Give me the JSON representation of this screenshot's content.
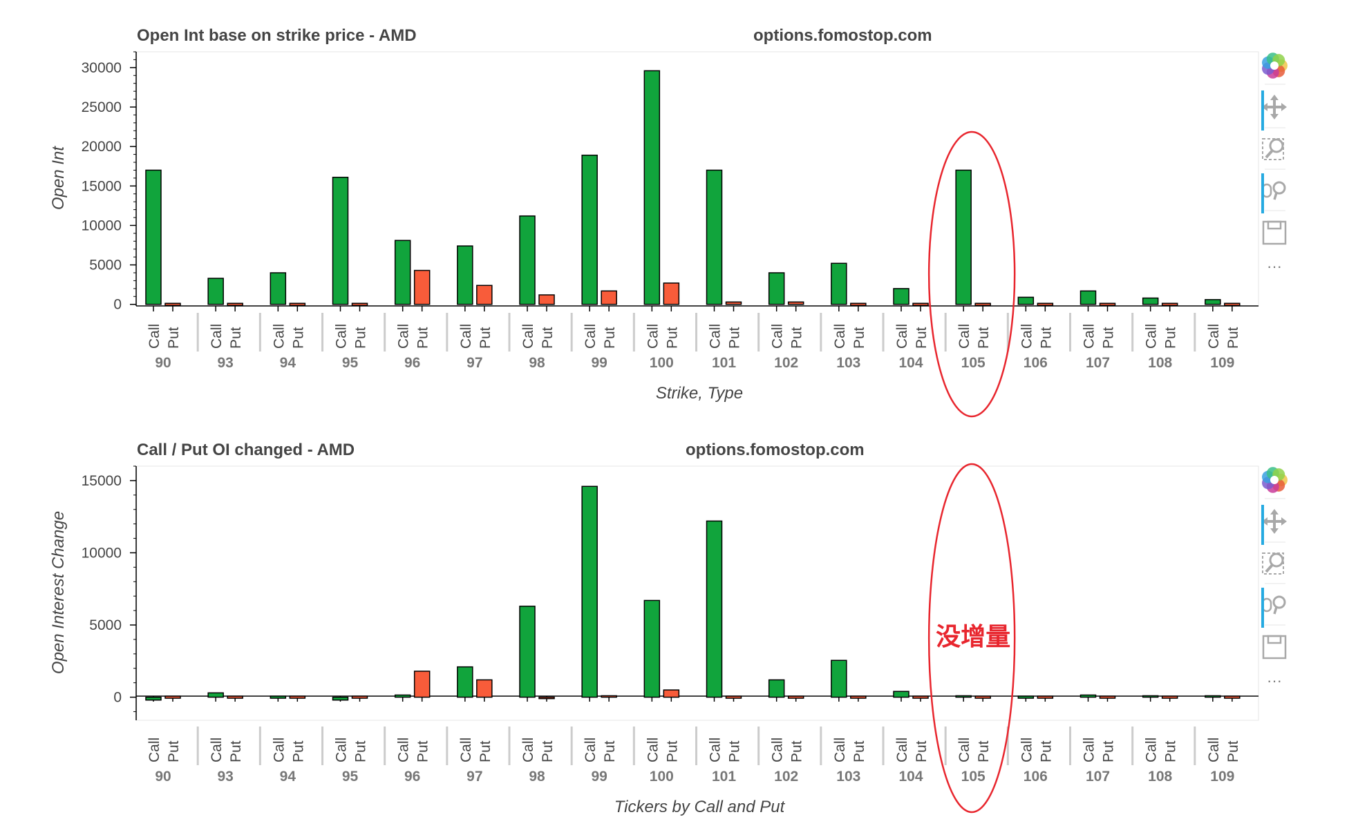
{
  "colors": {
    "call": "#11a43c",
    "put": "#f85c3a",
    "annotation": "#e8262e",
    "toolbar_active": "#26aae1",
    "toolbar_icon": "#a8a8a8"
  },
  "toolbar": {
    "tools": [
      {
        "name": "bokeh-logo-icon",
        "active": false
      },
      {
        "name": "pan-tool-icon",
        "active": true
      },
      {
        "name": "box-zoom-tool-icon",
        "active": false
      },
      {
        "name": "wheel-zoom-tool-icon",
        "active": true
      },
      {
        "name": "save-tool-icon",
        "active": false
      }
    ],
    "more_label": "···"
  },
  "chart_data": [
    {
      "type": "bar",
      "title": "Open Int base on strike price - AMD",
      "watermark": "options.fomostop.com",
      "xlabel": "Strike, Type",
      "ylabel": "Open Int",
      "ylim": [
        -200,
        32000
      ],
      "yticks": [
        0,
        5000,
        10000,
        15000,
        20000,
        25000,
        30000
      ],
      "categories": [
        "90",
        "93",
        "94",
        "95",
        "96",
        "97",
        "98",
        "99",
        "100",
        "101",
        "102",
        "103",
        "104",
        "105",
        "106",
        "107",
        "108",
        "109"
      ],
      "subcategories": [
        "Call",
        "Put"
      ],
      "series": [
        {
          "name": "Call",
          "values": [
            17000,
            3300,
            4000,
            16100,
            8100,
            7400,
            11200,
            18900,
            29600,
            17000,
            4000,
            5200,
            2000,
            17000,
            900,
            1700,
            800,
            600
          ]
        },
        {
          "name": "Put",
          "values": [
            0,
            0,
            0,
            0,
            4300,
            2400,
            1200,
            1700,
            2700,
            300,
            300,
            0,
            150,
            0,
            0,
            0,
            0,
            0
          ]
        }
      ],
      "annotation": {
        "type": "ellipse",
        "strike": "105",
        "label": ""
      }
    },
    {
      "type": "bar",
      "title": "Call / Put OI changed - AMD",
      "watermark": "options.fomostop.com",
      "xlabel": "Tickers by Call and Put",
      "ylabel": "Open Interest Change",
      "ylim": [
        -1600,
        16000
      ],
      "yticks": [
        0,
        5000,
        10000,
        15000
      ],
      "categories": [
        "90",
        "93",
        "94",
        "95",
        "96",
        "97",
        "98",
        "99",
        "100",
        "101",
        "102",
        "103",
        "104",
        "105",
        "106",
        "107",
        "108",
        "109"
      ],
      "subcategories": [
        "Call",
        "Put"
      ],
      "series": [
        {
          "name": "Call",
          "values": [
            -200,
            300,
            0,
            -200,
            150,
            2100,
            6300,
            14600,
            6700,
            12200,
            1200,
            2550,
            400,
            100,
            0,
            150,
            100,
            100
          ]
        },
        {
          "name": "Put",
          "values": [
            0,
            0,
            0,
            0,
            1800,
            1200,
            -100,
            100,
            500,
            0,
            0,
            0,
            50,
            0,
            0,
            0,
            0,
            0
          ]
        }
      ],
      "annotation": {
        "type": "ellipse",
        "strike": "105",
        "label": "没增量"
      }
    }
  ]
}
